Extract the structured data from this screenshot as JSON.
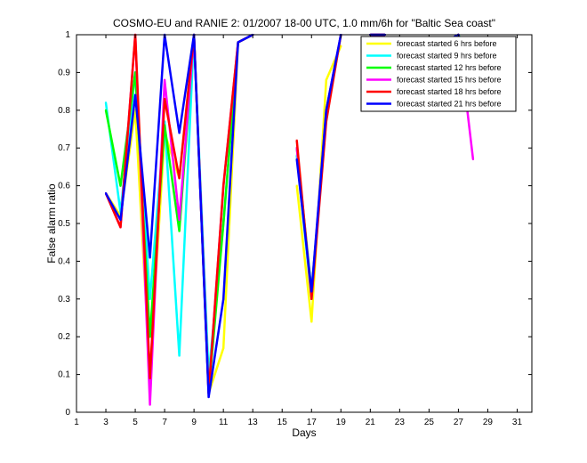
{
  "chart_data": {
    "type": "line",
    "title": "COSMO-EU and RANIE 2: 01/2007 18-00 UTC, 1.0 mm/6h for \"Baltic Sea coast\"",
    "xlabel": "Days",
    "ylabel": "False alarm ratio",
    "xlim": [
      1,
      32
    ],
    "ylim": [
      0,
      1
    ],
    "xticks": [
      1,
      3,
      5,
      7,
      9,
      11,
      13,
      15,
      17,
      19,
      21,
      23,
      25,
      27,
      29,
      31
    ],
    "yticks": [
      0,
      0.1,
      0.2,
      0.3,
      0.4,
      0.5,
      0.6,
      0.7,
      0.8,
      0.9,
      1
    ],
    "ytick_labels": [
      "0",
      "0.1",
      "0.2",
      "0.3",
      "0.4",
      "0.5",
      "0.6",
      "0.7",
      "0.8",
      "0.9",
      "1"
    ],
    "legend_position": "top-right",
    "grid": false,
    "series": [
      {
        "name": "forecast started 6 hrs before",
        "color": "#ffff00",
        "points": [
          [
            3,
            0.58
          ],
          [
            4,
            0.52
          ],
          [
            5,
            0.8
          ],
          [
            6,
            0.1
          ],
          [
            7,
            0.74
          ],
          [
            8,
            0.62
          ],
          [
            9,
            1.0
          ],
          [
            10,
            0.05
          ],
          [
            11,
            0.17
          ],
          [
            12,
            0.98
          ],
          [
            13,
            1.0
          ],
          [
            16,
            0.6
          ],
          [
            17,
            0.24
          ],
          [
            18,
            0.88
          ],
          [
            19,
            0.97
          ],
          [
            21,
            1.0
          ],
          [
            22,
            1.0
          ],
          [
            26,
            0.97
          ],
          [
            27,
            1.0
          ],
          [
            28,
            0.9
          ]
        ]
      },
      {
        "name": "forecast started 9 hrs before",
        "color": "#00ffff",
        "points": [
          [
            3,
            0.82
          ],
          [
            4,
            0.53
          ],
          [
            5,
            0.9
          ],
          [
            6,
            0.3
          ],
          [
            7,
            0.77
          ],
          [
            8,
            0.15
          ],
          [
            9,
            1.0
          ],
          [
            10,
            0.1
          ],
          [
            11,
            0.5
          ],
          [
            12,
            0.98
          ],
          [
            13,
            1.0
          ],
          [
            16,
            0.68
          ],
          [
            17,
            0.3
          ],
          [
            18,
            0.8
          ],
          [
            19,
            1.0
          ],
          [
            21,
            1.0
          ],
          [
            22,
            1.0
          ],
          [
            26,
            0.9
          ],
          [
            27,
            1.0
          ],
          [
            28,
            0.92
          ]
        ]
      },
      {
        "name": "forecast started 12 hrs before",
        "color": "#00ff00",
        "points": [
          [
            3,
            0.8
          ],
          [
            4,
            0.6
          ],
          [
            5,
            0.9
          ],
          [
            6,
            0.2
          ],
          [
            7,
            0.76
          ],
          [
            8,
            0.48
          ],
          [
            9,
            1.0
          ],
          [
            10,
            0.05
          ],
          [
            11,
            0.5
          ],
          [
            12,
            0.98
          ],
          [
            13,
            1.0
          ],
          [
            16,
            0.7
          ],
          [
            17,
            0.32
          ],
          [
            18,
            0.78
          ],
          [
            19,
            1.0
          ],
          [
            21,
            1.0
          ],
          [
            22,
            1.0
          ],
          [
            26,
            0.84
          ],
          [
            27,
            1.0
          ],
          [
            28,
            0.88
          ]
        ]
      },
      {
        "name": "forecast started 15 hrs before",
        "color": "#ff00ff",
        "points": [
          [
            3,
            0.58
          ],
          [
            4,
            0.49
          ],
          [
            5,
            1.0
          ],
          [
            6,
            0.02
          ],
          [
            7,
            0.88
          ],
          [
            8,
            0.51
          ],
          [
            9,
            1.0
          ],
          [
            10,
            0.05
          ],
          [
            11,
            0.6
          ],
          [
            12,
            0.98
          ],
          [
            13,
            1.0
          ],
          [
            16,
            0.7
          ],
          [
            17,
            0.31
          ],
          [
            18,
            0.8
          ],
          [
            19,
            1.0
          ],
          [
            21,
            1.0
          ],
          [
            22,
            1.0
          ],
          [
            26,
            0.87
          ],
          [
            27,
            1.0
          ],
          [
            28,
            0.67
          ]
        ]
      },
      {
        "name": "forecast started 18 hrs before",
        "color": "#ff0000",
        "points": [
          [
            3,
            0.58
          ],
          [
            4,
            0.49
          ],
          [
            5,
            1.0
          ],
          [
            6,
            0.09
          ],
          [
            7,
            0.83
          ],
          [
            8,
            0.62
          ],
          [
            9,
            1.0
          ],
          [
            10,
            0.05
          ],
          [
            11,
            0.6
          ],
          [
            12,
            0.98
          ],
          [
            13,
            1.0
          ],
          [
            16,
            0.72
          ],
          [
            17,
            0.3
          ],
          [
            18,
            0.77
          ],
          [
            19,
            1.0
          ],
          [
            21,
            1.0
          ],
          [
            22,
            1.0
          ],
          [
            26,
            0.93
          ],
          [
            27,
            1.0
          ],
          [
            28,
            0.81
          ]
        ]
      },
      {
        "name": "forecast started 21 hrs before",
        "color": "#0000ff",
        "points": [
          [
            3,
            0.58
          ],
          [
            4,
            0.51
          ],
          [
            5,
            0.84
          ],
          [
            6,
            0.41
          ],
          [
            7,
            1.0
          ],
          [
            8,
            0.74
          ],
          [
            9,
            1.0
          ],
          [
            10,
            0.04
          ],
          [
            11,
            0.3
          ],
          [
            12,
            0.98
          ],
          [
            13,
            1.0
          ],
          [
            16,
            0.67
          ],
          [
            17,
            0.32
          ],
          [
            18,
            0.8
          ],
          [
            19,
            1.0
          ],
          [
            21,
            1.0
          ],
          [
            22,
            1.0
          ],
          [
            26,
            0.98
          ],
          [
            27,
            1.0
          ],
          [
            28,
            0.88
          ]
        ]
      }
    ]
  }
}
